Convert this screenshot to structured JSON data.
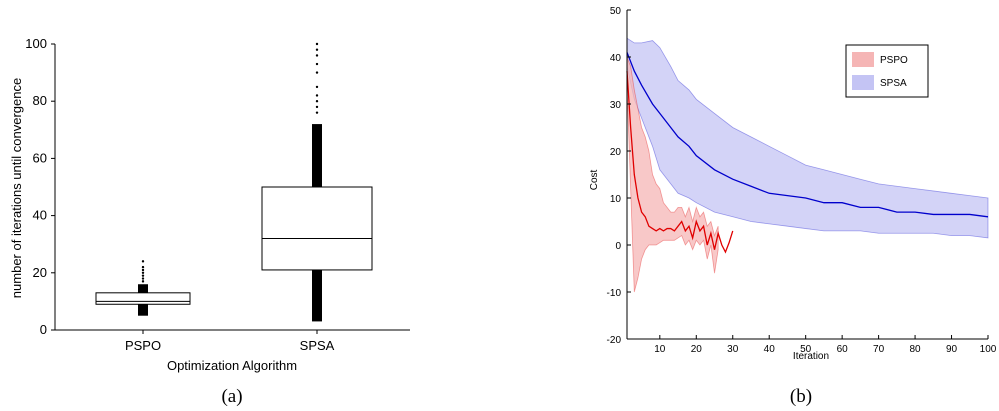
{
  "captions": {
    "left": "(a)",
    "right": "(b)"
  },
  "chart_data": [
    {
      "type": "box",
      "xlabel": "Optimization Algorithm",
      "ylabel": "number of iterations until convergence",
      "ylim": [
        0,
        100
      ],
      "yticks": [
        0,
        20,
        40,
        60,
        80,
        100
      ],
      "categories": [
        "PSPO",
        "SPSA"
      ],
      "boxes": [
        {
          "name": "PSPO",
          "whisker_low": 5,
          "q1": 9,
          "median": 10,
          "q3": 13,
          "whisker_high": 16,
          "outliers": [
            17,
            18,
            19,
            20,
            21,
            22,
            24
          ]
        },
        {
          "name": "SPSA",
          "whisker_low": 3,
          "q1": 21,
          "median": 32,
          "q3": 50,
          "whisker_high": 72,
          "outliers": [
            76,
            78,
            80,
            82,
            85,
            90,
            93,
            96,
            98,
            100
          ]
        }
      ],
      "colors": {
        "box": "#000000",
        "outlier": "#000000"
      }
    },
    {
      "type": "line",
      "xlabel": "Iteration",
      "ylabel": "Cost",
      "xlim": [
        1,
        100
      ],
      "ylim": [
        -20,
        50
      ],
      "xticks": [
        10,
        20,
        30,
        40,
        50,
        60,
        70,
        80,
        90,
        100
      ],
      "yticks": [
        -20,
        -10,
        0,
        10,
        20,
        30,
        40,
        50
      ],
      "legend_position": "top-right",
      "series": [
        {
          "name": "PSPO",
          "color": "#e00000",
          "band_color": "#f5b5b5",
          "x": [
            1,
            2,
            3,
            4,
            5,
            6,
            7,
            8,
            9,
            10,
            11,
            12,
            13,
            14,
            15,
            16,
            17,
            18,
            19,
            20,
            21,
            22,
            23,
            24,
            25,
            26,
            27,
            28,
            29,
            30
          ],
          "mean": [
            37,
            25,
            15,
            10,
            7,
            6,
            4,
            3.5,
            3,
            3.5,
            3,
            3.5,
            3.5,
            3,
            4,
            5,
            3,
            4,
            1.5,
            5,
            3,
            4,
            0,
            2.5,
            -1,
            2.5,
            0,
            -1.5,
            0.5,
            3
          ],
          "upper": [
            40,
            38,
            33,
            29,
            25,
            23,
            20,
            15,
            13,
            12,
            9,
            8,
            7,
            7,
            8,
            8,
            6,
            8,
            5,
            8,
            6,
            7,
            4,
            5,
            2,
            4,
            null,
            null,
            null,
            null
          ],
          "lower": [
            34,
            12,
            -10,
            -7,
            -3,
            -1,
            0,
            0,
            0,
            0.5,
            1,
            1,
            1,
            1,
            1.5,
            2,
            0,
            1,
            -1,
            1,
            0,
            1,
            -3,
            0,
            -6,
            -1,
            null,
            null,
            null,
            null
          ]
        },
        {
          "name": "SPSA",
          "color": "#0000cc",
          "band_color": "#c4c4f4",
          "x": [
            1,
            3,
            5,
            8,
            10,
            13,
            15,
            18,
            20,
            25,
            30,
            35,
            40,
            45,
            50,
            55,
            60,
            65,
            70,
            75,
            80,
            85,
            90,
            95,
            100
          ],
          "mean": [
            41,
            37,
            34,
            30,
            28,
            25,
            23,
            21,
            19,
            16,
            14,
            12.5,
            11,
            10.5,
            10,
            9,
            9,
            8,
            8,
            7,
            7,
            6.5,
            6.5,
            6.5,
            6
          ],
          "upper": [
            44,
            43,
            43,
            43.5,
            42,
            38,
            35,
            33,
            31,
            28,
            25,
            23,
            21,
            19,
            17,
            16,
            15,
            14,
            13,
            12.5,
            12,
            11.5,
            11,
            10.5,
            10
          ],
          "lower": [
            38,
            31,
            27,
            21,
            16,
            13,
            11,
            10,
            9,
            7,
            6,
            5,
            4.5,
            4,
            3.5,
            3,
            3,
            3,
            2.5,
            2.5,
            2.5,
            2.5,
            2,
            2,
            1.5
          ]
        }
      ]
    }
  ]
}
